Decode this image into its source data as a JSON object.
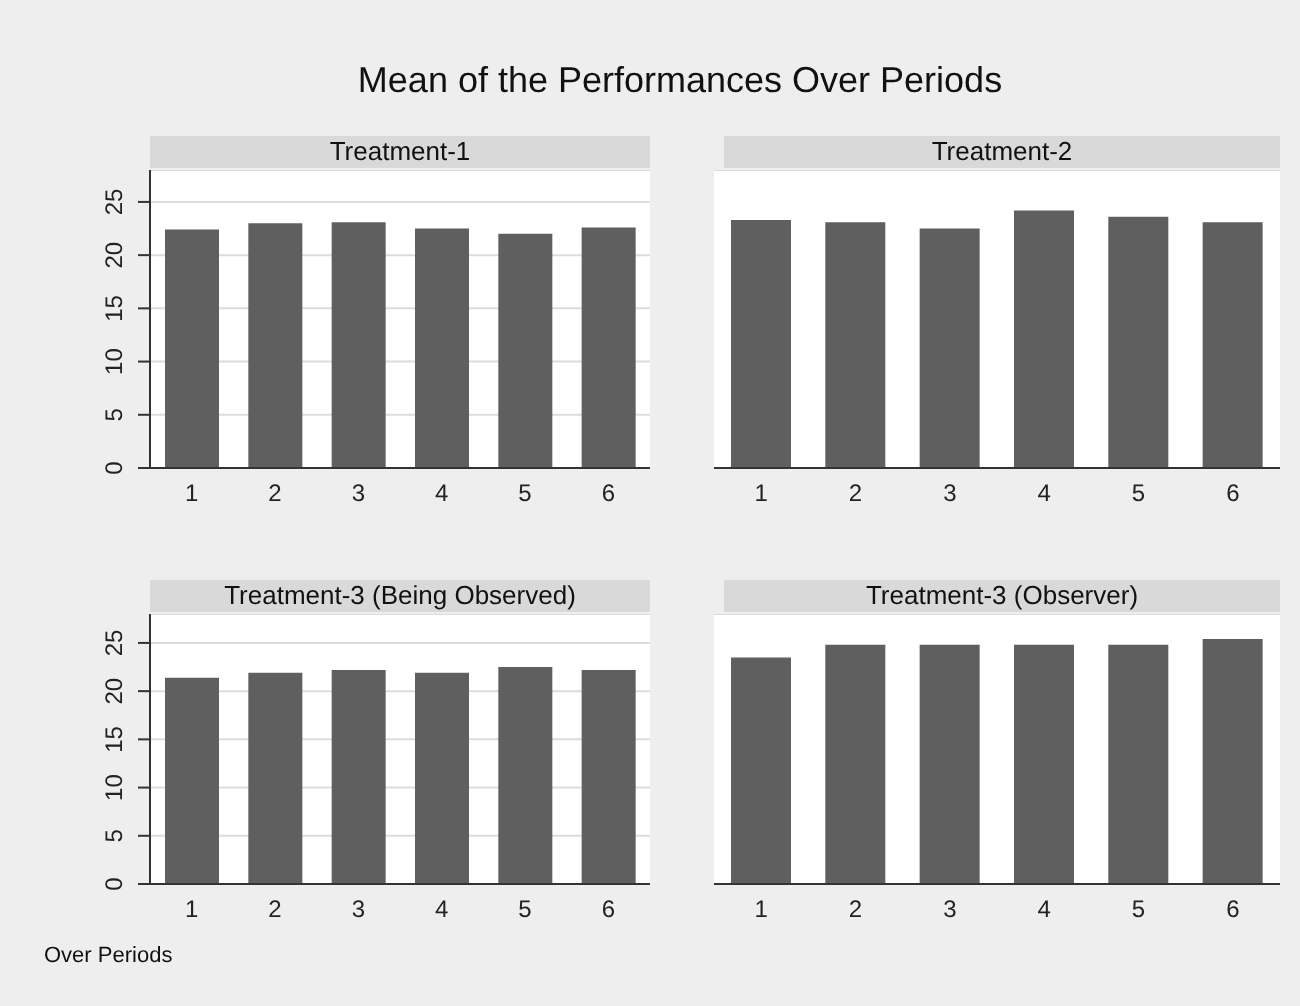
{
  "chart_data": [
    {
      "type": "bar",
      "title": "Treatment-1",
      "annotations": [
        "Mean of the Performances Over Periods"
      ],
      "categories": [
        "1",
        "2",
        "3",
        "4",
        "5",
        "6"
      ],
      "values": [
        22.4,
        23.0,
        23.1,
        22.5,
        22.0,
        22.6
      ],
      "color": "#5f5f5f",
      "ylim": [
        0,
        28
      ],
      "yticks": [
        0,
        5,
        10,
        15,
        20,
        25
      ],
      "grid": "y"
    },
    {
      "type": "bar",
      "title": "Treatment-2",
      "categories": [
        "1",
        "2",
        "3",
        "4",
        "5",
        "6"
      ],
      "values": [
        23.3,
        23.1,
        22.5,
        24.2,
        23.6,
        23.1
      ],
      "color": "#5f5f5f",
      "ylim": [
        0,
        28
      ],
      "yticks": [
        0,
        5,
        10,
        15,
        20,
        25
      ],
      "grid": "y",
      "tick_labels": "x"
    },
    {
      "type": "bar",
      "title": "Treatment-3 (Being Observed)",
      "xlabel": "Over Periods",
      "categories": [
        "1",
        "2",
        "3",
        "4",
        "5",
        "6"
      ],
      "values": [
        21.4,
        21.9,
        22.2,
        21.9,
        22.5,
        22.2
      ],
      "color": "#5f5f5f",
      "ylim": [
        0,
        28
      ],
      "yticks": [
        0,
        5,
        10,
        15,
        20,
        25
      ],
      "grid": "y"
    },
    {
      "type": "bar",
      "title": "Treatment-3 (Observer)",
      "categories": [
        "1",
        "2",
        "3",
        "4",
        "5",
        "6"
      ],
      "values": [
        23.5,
        24.8,
        24.8,
        24.8,
        24.8,
        25.4
      ],
      "color": "#5f5f5f",
      "ylim": [
        0,
        28
      ],
      "yticks": [
        0,
        5,
        10,
        15,
        20,
        25
      ],
      "grid": "y",
      "tick_labels": "x"
    }
  ]
}
